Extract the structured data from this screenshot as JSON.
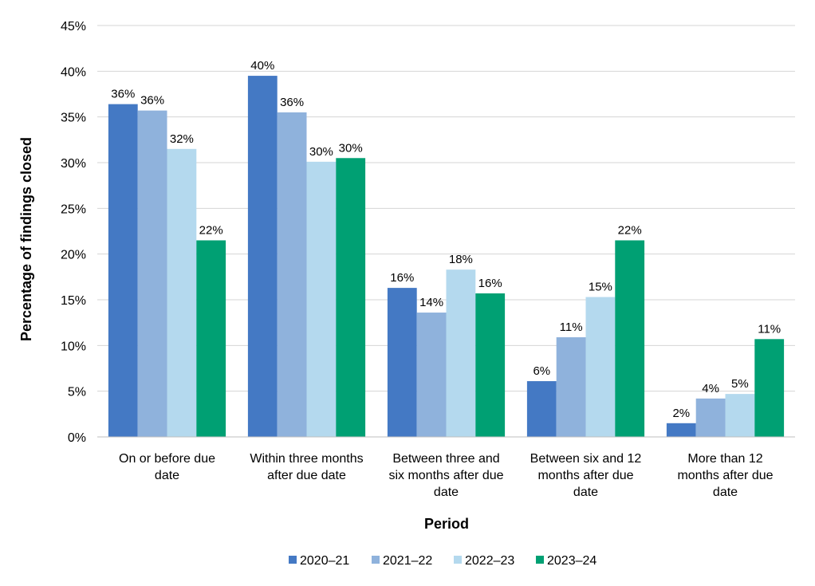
{
  "chart_data": {
    "type": "bar",
    "title": "",
    "xlabel": "Period",
    "ylabel": "Percentage of findings closed",
    "ylim": [
      0,
      45
    ],
    "yticks": [
      0,
      5,
      10,
      15,
      20,
      25,
      30,
      35,
      40,
      45
    ],
    "y_tick_suffix": "%",
    "grid": true,
    "legend_position": "bottom",
    "categories": [
      [
        "On or before due",
        "date"
      ],
      [
        "Within three months",
        "after due date"
      ],
      [
        "Between three and",
        "six months after due",
        "date"
      ],
      [
        "Between six and 12",
        "months after due",
        "date"
      ],
      [
        "More than 12",
        "months after due",
        "date"
      ]
    ],
    "series": [
      {
        "name": "2020–21",
        "color": "#4479c4",
        "values": [
          36.4,
          39.5,
          16.3,
          6.1,
          1.5
        ],
        "labels": [
          "36%",
          "40%",
          "16%",
          "6%",
          "2%"
        ]
      },
      {
        "name": "2021–22",
        "color": "#8fb2dc",
        "values": [
          35.7,
          35.5,
          13.6,
          10.9,
          4.2
        ],
        "labels": [
          "36%",
          "36%",
          "14%",
          "11%",
          "4%"
        ]
      },
      {
        "name": "2022–23",
        "color": "#b4d9ee",
        "values": [
          31.5,
          30.1,
          18.3,
          15.3,
          4.7
        ],
        "labels": [
          "32%",
          "30%",
          "18%",
          "15%",
          "5%"
        ]
      },
      {
        "name": "2023–24",
        "color": "#00a073",
        "values": [
          21.5,
          30.5,
          15.7,
          21.5,
          10.7
        ],
        "labels": [
          "22%",
          "30%",
          "16%",
          "22%",
          "11%"
        ]
      }
    ]
  }
}
